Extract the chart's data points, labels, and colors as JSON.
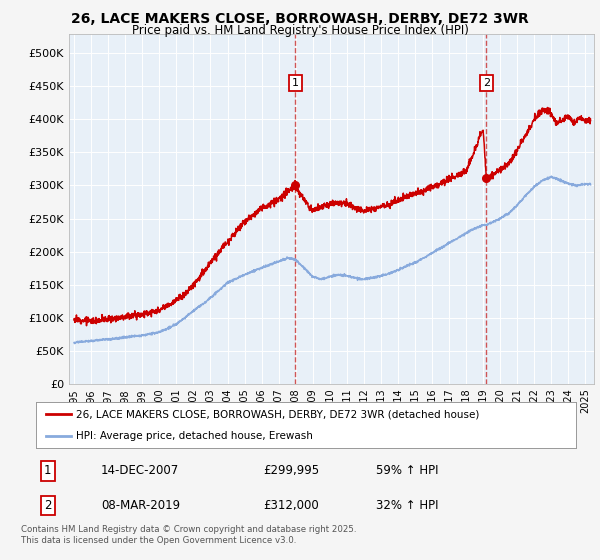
{
  "title": "26, LACE MAKERS CLOSE, BORROWASH, DERBY, DE72 3WR",
  "subtitle": "Price paid vs. HM Land Registry's House Price Index (HPI)",
  "yticks": [
    0,
    50000,
    100000,
    150000,
    200000,
    250000,
    300000,
    350000,
    400000,
    450000,
    500000
  ],
  "ylim": [
    0,
    530000
  ],
  "xlim_start": 1994.7,
  "xlim_end": 2025.5,
  "red_color": "#cc0000",
  "blue_color": "#88aadd",
  "dashed_color": "#cc4444",
  "ann1_x": 2007.97,
  "ann1_y": 299995,
  "ann2_x": 2019.18,
  "ann2_y": 312000,
  "legend_red": "26, LACE MAKERS CLOSE, BORROWASH, DERBY, DE72 3WR (detached house)",
  "legend_blue": "HPI: Average price, detached house, Erewash",
  "footer": "Contains HM Land Registry data © Crown copyright and database right 2025.\nThis data is licensed under the Open Government Licence v3.0.",
  "bg_color": "#f5f5f5",
  "plot_bg": "#e8f0f8"
}
